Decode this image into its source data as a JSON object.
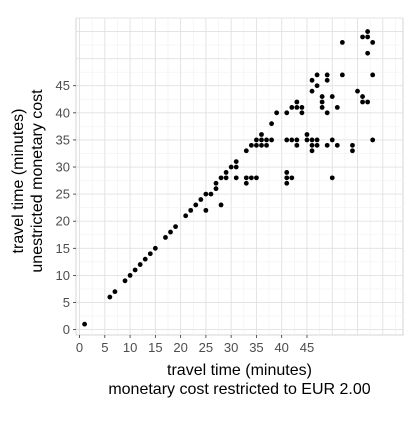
{
  "chart_data": {
    "type": "scatter",
    "title": "",
    "xlabel": [
      "travel time (minutes)",
      "monetary cost restricted to EUR 2.00"
    ],
    "ylabel": [
      "travel time (minutes)",
      "unestricted monetary cost"
    ],
    "xlim": [
      -0.7,
      64
    ],
    "ylim": [
      -1.0,
      57.5
    ],
    "x_ticks": [
      "0",
      "5",
      "10",
      "15",
      "20",
      "25",
      "30",
      "35",
      "40",
      "45"
    ],
    "y_ticks": [
      "0",
      "5",
      "10",
      "15",
      "20",
      "25",
      "30",
      "35",
      "40",
      "45"
    ],
    "grid": true,
    "legend": "none",
    "point_color": "#000000",
    "points": [
      [
        1,
        1
      ],
      [
        6,
        6
      ],
      [
        7,
        7
      ],
      [
        9,
        9
      ],
      [
        10,
        10
      ],
      [
        11,
        11
      ],
      [
        12,
        12
      ],
      [
        13,
        13
      ],
      [
        14,
        14
      ],
      [
        15,
        15
      ],
      [
        17,
        17
      ],
      [
        18,
        18
      ],
      [
        19,
        19
      ],
      [
        21,
        21
      ],
      [
        22,
        22
      ],
      [
        23,
        23
      ],
      [
        24,
        24
      ],
      [
        25,
        25
      ],
      [
        25,
        22
      ],
      [
        26,
        25
      ],
      [
        27,
        26
      ],
      [
        27,
        27
      ],
      [
        28,
        23
      ],
      [
        28,
        28
      ],
      [
        29,
        28
      ],
      [
        29,
        29
      ],
      [
        30,
        30
      ],
      [
        31,
        28
      ],
      [
        31,
        30
      ],
      [
        31,
        31
      ],
      [
        33,
        28
      ],
      [
        33,
        27
      ],
      [
        33,
        33
      ],
      [
        34,
        28
      ],
      [
        34,
        34
      ],
      [
        35,
        28
      ],
      [
        35,
        34
      ],
      [
        35,
        35
      ],
      [
        36,
        34
      ],
      [
        36,
        35
      ],
      [
        36,
        36
      ],
      [
        37,
        34
      ],
      [
        37,
        35
      ],
      [
        38,
        35
      ],
      [
        38,
        38
      ],
      [
        39,
        40
      ],
      [
        41,
        35
      ],
      [
        41,
        28
      ],
      [
        41,
        29
      ],
      [
        41,
        27
      ],
      [
        41,
        40
      ],
      [
        42,
        35
      ],
      [
        42,
        41
      ],
      [
        42,
        28
      ],
      [
        43,
        35
      ],
      [
        43,
        41
      ],
      [
        43,
        42
      ],
      [
        43,
        34
      ],
      [
        44,
        40
      ],
      [
        44,
        41
      ],
      [
        45,
        35
      ],
      [
        45,
        36
      ],
      [
        46,
        34
      ],
      [
        46,
        35
      ],
      [
        46,
        33
      ],
      [
        46,
        44
      ],
      [
        46,
        46
      ],
      [
        47,
        45
      ],
      [
        47,
        47
      ],
      [
        47,
        35
      ],
      [
        47,
        34
      ],
      [
        48,
        43
      ],
      [
        48,
        42
      ],
      [
        48,
        41
      ],
      [
        49,
        46
      ],
      [
        49,
        47
      ],
      [
        49,
        40
      ],
      [
        49,
        34
      ],
      [
        50,
        28
      ],
      [
        50,
        43
      ],
      [
        50,
        35
      ],
      [
        51,
        34
      ],
      [
        51,
        41
      ],
      [
        52,
        47
      ],
      [
        52,
        53
      ],
      [
        54,
        34
      ],
      [
        54,
        33
      ],
      [
        55,
        44
      ],
      [
        56,
        42
      ],
      [
        56,
        43
      ],
      [
        56,
        54
      ],
      [
        57,
        55
      ],
      [
        57,
        54
      ],
      [
        57,
        51
      ],
      [
        57,
        42
      ],
      [
        58,
        53
      ],
      [
        58,
        47
      ],
      [
        58,
        35
      ]
    ]
  }
}
